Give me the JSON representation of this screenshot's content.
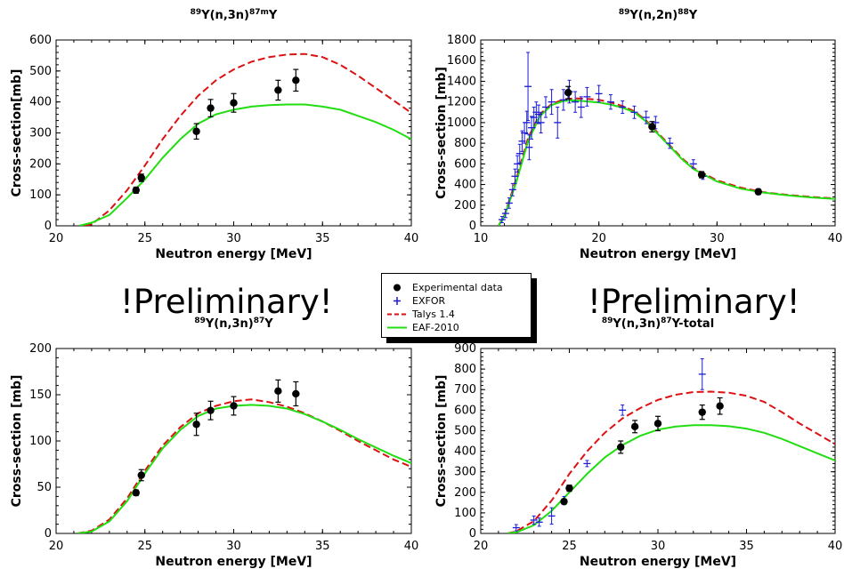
{
  "colors": {
    "experimental": "#000000",
    "exfor": "#1a1ad6",
    "talys": "#dd1111",
    "eaf": "#22dd11"
  },
  "legend": {
    "items": [
      {
        "label": "Experimental data",
        "symbol": "filled-circle-icon"
      },
      {
        "label": "EXFOR",
        "symbol": "blue-cross-icon"
      },
      {
        "label": "Talys 1.4",
        "symbol": "red-dashed-line-icon"
      },
      {
        "label": "EAF-2010",
        "symbol": "green-line-icon"
      }
    ]
  },
  "watermarks": {
    "left": "!Preliminary!",
    "right": "!Preliminary!"
  },
  "chart_data": [
    {
      "type": "line",
      "title": {
        "pre": "89",
        "mid": "Y(n,3n)",
        "post": "87m",
        "end": "Y"
      },
      "xlabel": "Neutron energy [MeV]",
      "ylabel": "Cross-section[mb]",
      "xlim": [
        20,
        40
      ],
      "ylim": [
        0,
        600
      ],
      "xticks": [
        20,
        25,
        30,
        35,
        40
      ],
      "yticks": [
        0,
        100,
        200,
        300,
        400,
        500,
        600
      ],
      "series": [
        {
          "name": "Talys 1.4",
          "style": "dashed",
          "color": "#dd1111",
          "x": [
            21.6,
            22,
            23,
            24,
            25,
            26,
            27,
            28,
            29,
            30,
            31,
            32,
            33,
            34,
            35,
            36,
            37,
            38,
            39,
            40
          ],
          "y": [
            0,
            5,
            50,
            115,
            195,
            280,
            355,
            420,
            470,
            505,
            530,
            545,
            553,
            555,
            545,
            520,
            485,
            445,
            405,
            365
          ]
        },
        {
          "name": "EAF-2010",
          "style": "solid",
          "color": "#22dd11",
          "x": [
            21.3,
            22,
            23,
            24,
            25,
            26,
            27,
            28,
            29,
            30,
            31,
            32,
            33,
            34,
            35,
            36,
            37,
            38,
            39,
            40
          ],
          "y": [
            0,
            10,
            35,
            90,
            150,
            220,
            280,
            330,
            360,
            375,
            385,
            390,
            392,
            392,
            385,
            375,
            355,
            335,
            310,
            280
          ]
        },
        {
          "name": "Experimental data",
          "style": "points",
          "color": "#000000",
          "x": [
            24.5,
            24.8,
            27.9,
            28.7,
            30,
            32.5,
            33.5
          ],
          "y": [
            115,
            155,
            305,
            380,
            397,
            438,
            470
          ],
          "err": [
            10,
            12,
            25,
            28,
            30,
            32,
            35
          ]
        }
      ]
    },
    {
      "type": "line",
      "title": {
        "pre": "89",
        "mid": "Y(n,2n)",
        "post": "88",
        "end": "Y"
      },
      "xlabel": "Neutron energy [MeV]",
      "ylabel": "Cross-section [mb]",
      "xlim": [
        10,
        40
      ],
      "ylim": [
        0,
        1800
      ],
      "xticks": [
        10,
        20,
        30,
        40
      ],
      "yticks": [
        0,
        200,
        400,
        600,
        800,
        1000,
        1200,
        1400,
        1600,
        1800
      ],
      "series": [
        {
          "name": "Talys 1.4",
          "style": "dashed",
          "color": "#dd1111",
          "x": [
            11.5,
            12,
            13,
            14,
            15,
            16,
            17,
            18,
            19,
            20,
            21,
            22,
            23,
            24,
            25,
            26,
            27,
            28,
            30,
            32,
            34,
            36,
            38,
            40
          ],
          "y": [
            0,
            100,
            450,
            850,
            1080,
            1180,
            1225,
            1235,
            1230,
            1220,
            1195,
            1160,
            1110,
            1020,
            900,
            780,
            660,
            560,
            440,
            370,
            325,
            300,
            280,
            265
          ]
        },
        {
          "name": "EAF-2010",
          "style": "solid",
          "color": "#22dd11",
          "x": [
            11.5,
            12,
            13,
            14,
            15,
            16,
            17,
            18,
            19,
            20,
            21,
            22,
            23,
            24,
            25,
            26,
            27,
            28,
            30,
            32,
            34,
            36,
            38,
            40
          ],
          "y": [
            0,
            90,
            420,
            820,
            1060,
            1170,
            1210,
            1215,
            1205,
            1195,
            1175,
            1145,
            1100,
            1010,
            890,
            770,
            650,
            550,
            430,
            360,
            320,
            295,
            275,
            260
          ]
        },
        {
          "name": "EXFOR",
          "style": "cross",
          "color": "#1a1ad6",
          "x": [
            11.8,
            12.1,
            12.4,
            12.7,
            12.9,
            13.1,
            13.3,
            13.5,
            13.7,
            13.9,
            14.0,
            14.1,
            14.3,
            14.5,
            14.7,
            14.9,
            15.1,
            15.5,
            16,
            16.5,
            17,
            17.5,
            18,
            18.5,
            19,
            20,
            21,
            22,
            23,
            24,
            24.8,
            26,
            28,
            28.8,
            33.5
          ],
          "y": [
            60,
            120,
            220,
            350,
            480,
            600,
            700,
            820,
            900,
            1000,
            1350,
            760,
            950,
            1050,
            1100,
            1080,
            1000,
            1150,
            1200,
            1000,
            1220,
            1300,
            1200,
            1150,
            1250,
            1280,
            1200,
            1150,
            1100,
            1050,
            1000,
            800,
            600,
            480,
            330
          ],
          "err": [
            30,
            40,
            50,
            60,
            70,
            80,
            90,
            100,
            100,
            110,
            330,
            120,
            110,
            100,
            100,
            90,
            100,
            100,
            120,
            150,
            100,
            110,
            100,
            100,
            90,
            80,
            70,
            60,
            60,
            60,
            60,
            50,
            40,
            30,
            30
          ]
        },
        {
          "name": "Experimental data",
          "style": "points",
          "color": "#000000",
          "x": [
            17.4,
            24.5,
            28.7,
            33.5
          ],
          "y": [
            1290,
            960,
            495,
            330
          ],
          "err": [
            60,
            50,
            30,
            25
          ]
        }
      ]
    },
    {
      "type": "line",
      "title": {
        "pre": "89",
        "mid": "Y(n,3n)",
        "post": "87",
        "end": "Y"
      },
      "xlabel": "Neutron energy [MeV]",
      "ylabel": "Cross-section [mb]",
      "xlim": [
        20,
        40
      ],
      "ylim": [
        0,
        200
      ],
      "xticks": [
        20,
        25,
        30,
        35,
        40
      ],
      "yticks": [
        0,
        50,
        100,
        150,
        200
      ],
      "series": [
        {
          "name": "Talys 1.4",
          "style": "dashed",
          "color": "#dd1111",
          "x": [
            21.2,
            22,
            23,
            24,
            25,
            26,
            27,
            28,
            29,
            30,
            31,
            32,
            33,
            34,
            35,
            36,
            37,
            38,
            39,
            40
          ],
          "y": [
            0,
            3,
            15,
            38,
            68,
            95,
            115,
            130,
            138,
            143,
            145,
            142,
            137,
            130,
            121,
            111,
            100,
            90,
            80,
            72
          ]
        },
        {
          "name": "EAF-2010",
          "style": "solid",
          "color": "#22dd11",
          "x": [
            21.2,
            22,
            23,
            24,
            25,
            26,
            27,
            28,
            29,
            30,
            31,
            32,
            33,
            34,
            35,
            36,
            37,
            38,
            39,
            40
          ],
          "y": [
            0,
            2,
            13,
            35,
            65,
            92,
            112,
            127,
            135,
            138,
            139,
            138,
            135,
            129,
            121,
            112,
            102,
            93,
            84,
            76
          ]
        },
        {
          "name": "Experimental data",
          "style": "points",
          "color": "#000000",
          "x": [
            24.5,
            24.8,
            27.9,
            28.7,
            30,
            32.5,
            33.5
          ],
          "y": [
            44,
            63,
            118,
            133,
            138,
            154,
            151
          ],
          "err": [
            3,
            6,
            12,
            10,
            10,
            12,
            13
          ]
        }
      ]
    },
    {
      "type": "line",
      "title": {
        "pre": "89",
        "mid": "Y(n,3n)",
        "post": "87",
        "end": "Y-total"
      },
      "xlabel": "Neutron energy [MeV]",
      "ylabel": "Cross-section [mb]",
      "xlim": [
        20,
        40
      ],
      "ylim": [
        0,
        900
      ],
      "xticks": [
        20,
        25,
        30,
        35,
        40
      ],
      "yticks": [
        0,
        100,
        200,
        300,
        400,
        500,
        600,
        700,
        800,
        900
      ],
      "series": [
        {
          "name": "Talys 1.4",
          "style": "dashed",
          "color": "#dd1111",
          "x": [
            21.5,
            22,
            23,
            24,
            25,
            26,
            27,
            28,
            29,
            30,
            31,
            32,
            33,
            34,
            35,
            36,
            37,
            38,
            39,
            40
          ],
          "y": [
            0,
            10,
            60,
            160,
            290,
            400,
            490,
            560,
            610,
            650,
            675,
            688,
            690,
            685,
            670,
            640,
            590,
            535,
            485,
            435
          ]
        },
        {
          "name": "EAF-2010",
          "style": "solid",
          "color": "#22dd11",
          "x": [
            21.5,
            22,
            23,
            24,
            25,
            26,
            27,
            28,
            29,
            30,
            31,
            32,
            33,
            34,
            35,
            36,
            37,
            38,
            39,
            40
          ],
          "y": [
            0,
            5,
            40,
            110,
            200,
            290,
            370,
            430,
            475,
            505,
            520,
            527,
            527,
            522,
            510,
            490,
            460,
            425,
            390,
            355
          ]
        },
        {
          "name": "EXFOR",
          "style": "cross",
          "color": "#1a1ad6",
          "x": [
            22,
            23,
            23.3,
            24,
            24.7,
            26,
            28,
            32.5
          ],
          "y": [
            28,
            65,
            55,
            85,
            160,
            340,
            600,
            775
          ],
          "err": [
            15,
            20,
            20,
            40,
            20,
            15,
            25,
            75
          ]
        },
        {
          "name": "Experimental data",
          "style": "points",
          "color": "#000000",
          "x": [
            24.7,
            25,
            27.9,
            28.7,
            30,
            32.5,
            33.5
          ],
          "y": [
            155,
            220,
            420,
            520,
            535,
            590,
            620
          ],
          "err": [
            12,
            15,
            30,
            30,
            35,
            35,
            40
          ]
        }
      ]
    }
  ]
}
